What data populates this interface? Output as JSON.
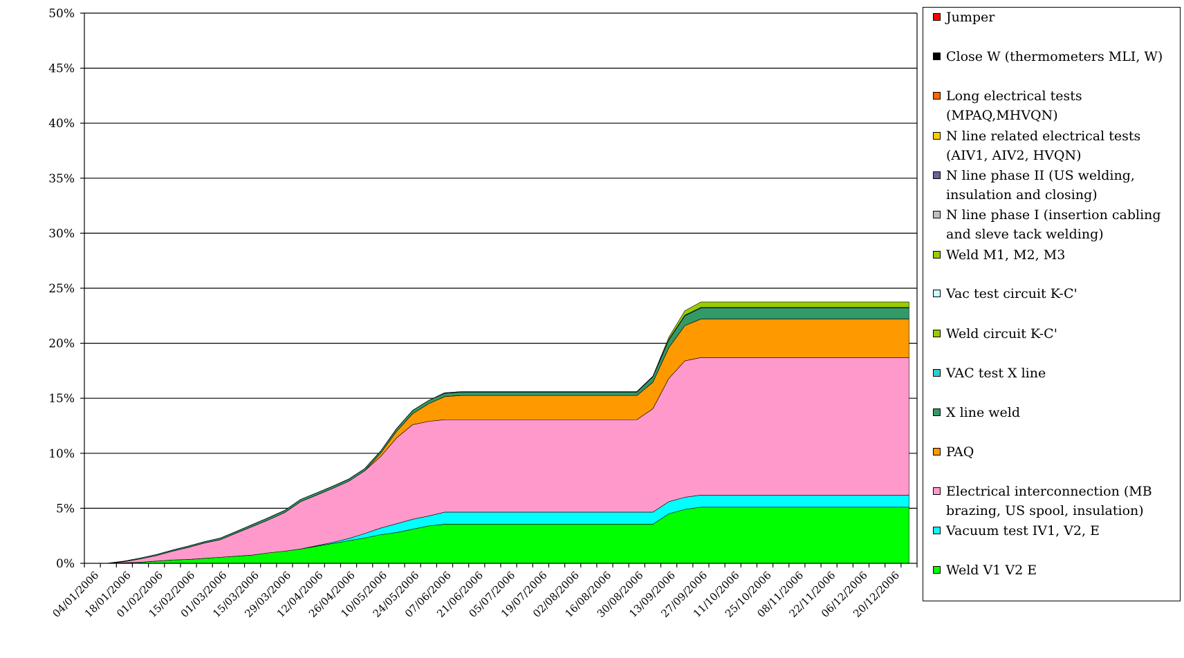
{
  "chart_data": {
    "type": "area",
    "stacked": true,
    "ylim": [
      0,
      50
    ],
    "y_ticks": [
      "0%",
      "5%",
      "10%",
      "15%",
      "20%",
      "25%",
      "30%",
      "35%",
      "40%",
      "45%",
      "50%"
    ],
    "x_tick_labels": [
      "04/01/2006",
      "18/01/2006",
      "01/02/2006",
      "15/02/2006",
      "01/03/2006",
      "15/03/2006",
      "29/03/2006",
      "12/04/2006",
      "26/04/2006",
      "10/05/2006",
      "24/05/2006",
      "07/06/2006",
      "21/06/2006",
      "05/07/2006",
      "19/07/2006",
      "02/08/2006",
      "16/08/2006",
      "30/08/2006",
      "13/09/2006",
      "27/09/2006",
      "11/10/2006",
      "25/10/2006",
      "08/11/2006",
      "22/11/2006",
      "06/12/2006",
      "20/12/2006"
    ],
    "x": [
      "04/01/2006",
      "11/01/2006",
      "18/01/2006",
      "25/01/2006",
      "01/02/2006",
      "08/02/2006",
      "15/02/2006",
      "22/02/2006",
      "01/03/2006",
      "08/03/2006",
      "15/03/2006",
      "22/03/2006",
      "29/03/2006",
      "05/04/2006",
      "12/04/2006",
      "19/04/2006",
      "26/04/2006",
      "03/05/2006",
      "10/05/2006",
      "17/05/2006",
      "24/05/2006",
      "31/05/2006",
      "07/06/2006",
      "14/06/2006",
      "21/06/2006",
      "28/06/2006",
      "05/07/2006",
      "12/07/2006",
      "19/07/2006",
      "26/07/2006",
      "02/08/2006",
      "09/08/2006",
      "16/08/2006",
      "23/08/2006",
      "30/08/2006",
      "06/09/2006",
      "13/09/2006",
      "20/09/2006",
      "27/09/2006",
      "04/10/2006",
      "11/10/2006",
      "18/10/2006",
      "25/10/2006",
      "01/11/2006",
      "08/11/2006",
      "15/11/2006",
      "22/11/2006",
      "29/11/2006",
      "06/12/2006",
      "13/12/2006",
      "20/12/2006",
      "27/12/2006"
    ],
    "grid": true,
    "legend_position": "right",
    "series": [
      {
        "name": "Weld V1 V2 E",
        "color": "#00ff00",
        "values": [
          0,
          0,
          0.05,
          0.1,
          0.2,
          0.3,
          0.35,
          0.45,
          0.55,
          0.65,
          0.75,
          0.95,
          1.1,
          1.3,
          1.55,
          1.8,
          2.05,
          2.3,
          2.6,
          2.8,
          3.1,
          3.4,
          3.55,
          3.55,
          3.55,
          3.55,
          3.55,
          3.55,
          3.55,
          3.55,
          3.55,
          3.55,
          3.55,
          3.55,
          3.55,
          3.55,
          4.5,
          4.9,
          5.1,
          5.1,
          5.1,
          5.1,
          5.1,
          5.1,
          5.1,
          5.1,
          5.1,
          5.1,
          5.1,
          5.1,
          5.1,
          5.1
        ]
      },
      {
        "name": "Vacuum test IV1, V2, E",
        "color": "#00ffff",
        "values": [
          0,
          0,
          0,
          0,
          0,
          0,
          0,
          0,
          0,
          0,
          0,
          0,
          0,
          0,
          0.05,
          0.1,
          0.2,
          0.4,
          0.6,
          0.8,
          0.9,
          0.9,
          1.1,
          1.1,
          1.1,
          1.1,
          1.1,
          1.1,
          1.1,
          1.1,
          1.1,
          1.1,
          1.1,
          1.1,
          1.1,
          1.1,
          1.1,
          1.1,
          1.1,
          1.1,
          1.1,
          1.1,
          1.1,
          1.1,
          1.1,
          1.1,
          1.1,
          1.1,
          1.1,
          1.1,
          1.1,
          1.1
        ]
      },
      {
        "name": "Electrical interconnection (MB brazing, US spool, insulation)",
        "color": "#ff99cc",
        "values": [
          0,
          0,
          0.1,
          0.3,
          0.5,
          0.8,
          1.1,
          1.4,
          1.6,
          2.1,
          2.6,
          3.0,
          3.5,
          4.3,
          4.6,
          4.9,
          5.2,
          5.7,
          6.5,
          7.8,
          8.6,
          8.6,
          8.4,
          8.4,
          8.4,
          8.4,
          8.4,
          8.4,
          8.4,
          8.4,
          8.4,
          8.4,
          8.4,
          8.4,
          8.4,
          9.4,
          11.2,
          12.4,
          12.5,
          12.5,
          12.5,
          12.5,
          12.5,
          12.5,
          12.5,
          12.5,
          12.5,
          12.5,
          12.5,
          12.5,
          12.5,
          12.5
        ]
      },
      {
        "name": "PAQ",
        "color": "#ff9900",
        "values": [
          0,
          0,
          0,
          0,
          0,
          0,
          0,
          0,
          0,
          0,
          0,
          0,
          0,
          0,
          0,
          0,
          0,
          0,
          0.3,
          0.6,
          1.0,
          1.6,
          2.1,
          2.2,
          2.2,
          2.2,
          2.2,
          2.2,
          2.2,
          2.2,
          2.2,
          2.2,
          2.2,
          2.2,
          2.2,
          2.4,
          2.8,
          3.2,
          3.5,
          3.5,
          3.5,
          3.5,
          3.5,
          3.5,
          3.5,
          3.5,
          3.5,
          3.5,
          3.5,
          3.5,
          3.5,
          3.5
        ]
      },
      {
        "name": "X line weld",
        "color": "#339966",
        "values": [
          0,
          0.02,
          0.05,
          0.08,
          0.1,
          0.1,
          0.12,
          0.12,
          0.15,
          0.15,
          0.18,
          0.2,
          0.2,
          0.2,
          0.2,
          0.2,
          0.2,
          0.2,
          0.2,
          0.25,
          0.3,
          0.3,
          0.3,
          0.3,
          0.3,
          0.3,
          0.3,
          0.3,
          0.3,
          0.3,
          0.3,
          0.3,
          0.3,
          0.3,
          0.3,
          0.5,
          0.7,
          0.9,
          1.0,
          1.0,
          1.0,
          1.0,
          1.0,
          1.0,
          1.0,
          1.0,
          1.0,
          1.0,
          1.0,
          1.0,
          1.0,
          1.0
        ]
      },
      {
        "name": "VAC test X line",
        "color": "#33cccc",
        "values": [
          0,
          0,
          0,
          0,
          0,
          0,
          0,
          0,
          0,
          0,
          0,
          0,
          0,
          0,
          0,
          0,
          0,
          0,
          0,
          0,
          0,
          0,
          0.05,
          0.05,
          0.05,
          0.05,
          0.05,
          0.05,
          0.05,
          0.05,
          0.05,
          0.05,
          0.05,
          0.05,
          0.05,
          0.05,
          0.05,
          0.05,
          0.05,
          0.05,
          0.05,
          0.05,
          0.05,
          0.05,
          0.05,
          0.05,
          0.05,
          0.05,
          0.05,
          0.05,
          0.05,
          0.05
        ]
      },
      {
        "name": "Weld circuit K-C'",
        "color": "#99cc00",
        "values": [
          0,
          0,
          0,
          0,
          0,
          0,
          0,
          0,
          0,
          0,
          0,
          0,
          0,
          0,
          0,
          0,
          0,
          0,
          0,
          0,
          0,
          0,
          0,
          0,
          0,
          0,
          0,
          0,
          0,
          0,
          0,
          0,
          0,
          0,
          0,
          0,
          0.2,
          0.4,
          0.5,
          0.5,
          0.5,
          0.5,
          0.5,
          0.5,
          0.5,
          0.5,
          0.5,
          0.5,
          0.5,
          0.5,
          0.5,
          0.5
        ]
      },
      {
        "name": "Vac test circuit K-C'",
        "color": "#ccffff",
        "values": [
          0,
          0,
          0,
          0,
          0,
          0,
          0,
          0,
          0,
          0,
          0,
          0,
          0,
          0,
          0,
          0,
          0,
          0,
          0,
          0,
          0,
          0,
          0,
          0,
          0,
          0,
          0,
          0,
          0,
          0,
          0,
          0,
          0,
          0,
          0,
          0,
          0,
          0,
          0,
          0,
          0,
          0,
          0,
          0,
          0,
          0,
          0,
          0,
          0,
          0,
          0,
          0
        ]
      },
      {
        "name": "Weld M1, M2, M3",
        "color": "#99cc00",
        "values": [
          0,
          0,
          0,
          0,
          0,
          0,
          0,
          0,
          0,
          0,
          0,
          0,
          0,
          0,
          0,
          0,
          0,
          0,
          0,
          0,
          0,
          0,
          0,
          0,
          0,
          0,
          0,
          0,
          0,
          0,
          0,
          0,
          0,
          0,
          0,
          0,
          0,
          0,
          0,
          0,
          0,
          0,
          0,
          0,
          0,
          0,
          0,
          0,
          0,
          0,
          0,
          0
        ]
      },
      {
        "name": "N line phase I (insertion cabling and sleve tack welding)",
        "color": "#c0c0c0",
        "values": [
          0,
          0,
          0,
          0,
          0,
          0,
          0,
          0,
          0,
          0,
          0,
          0,
          0,
          0,
          0,
          0,
          0,
          0,
          0,
          0,
          0,
          0,
          0,
          0,
          0,
          0,
          0,
          0,
          0,
          0,
          0,
          0,
          0,
          0,
          0,
          0,
          0,
          0,
          0,
          0,
          0,
          0,
          0,
          0,
          0,
          0,
          0,
          0,
          0,
          0,
          0,
          0
        ]
      },
      {
        "name": "N line phase II (US welding, insulation and closing)",
        "color": "#666699",
        "values": [
          0,
          0,
          0,
          0,
          0,
          0,
          0,
          0,
          0,
          0,
          0,
          0,
          0,
          0,
          0,
          0,
          0,
          0,
          0,
          0,
          0,
          0,
          0,
          0,
          0,
          0,
          0,
          0,
          0,
          0,
          0,
          0,
          0,
          0,
          0,
          0,
          0,
          0,
          0,
          0,
          0,
          0,
          0,
          0,
          0,
          0,
          0,
          0,
          0,
          0,
          0,
          0
        ]
      },
      {
        "name": "N line related electrical tests (AIV1, AIV2, HVQN)",
        "color": "#ffcc00",
        "values": [
          0,
          0,
          0,
          0,
          0,
          0,
          0,
          0,
          0,
          0,
          0,
          0,
          0,
          0,
          0,
          0,
          0,
          0,
          0,
          0,
          0,
          0,
          0,
          0,
          0,
          0,
          0,
          0,
          0,
          0,
          0,
          0,
          0,
          0,
          0,
          0,
          0,
          0,
          0,
          0,
          0,
          0,
          0,
          0,
          0,
          0,
          0,
          0,
          0,
          0,
          0,
          0
        ]
      },
      {
        "name": "Long electrical tests (MPAQ,MHVQN)",
        "color": "#ff6600",
        "values": [
          0,
          0,
          0,
          0,
          0,
          0,
          0,
          0,
          0,
          0,
          0,
          0,
          0,
          0,
          0,
          0,
          0,
          0,
          0,
          0,
          0,
          0,
          0,
          0,
          0,
          0,
          0,
          0,
          0,
          0,
          0,
          0,
          0,
          0,
          0,
          0,
          0,
          0,
          0,
          0,
          0,
          0,
          0,
          0,
          0,
          0,
          0,
          0,
          0,
          0,
          0,
          0
        ]
      },
      {
        "name": "Close W (thermometers MLI, W)",
        "color": "#000000",
        "values": [
          0,
          0,
          0,
          0,
          0,
          0,
          0,
          0,
          0,
          0,
          0,
          0,
          0,
          0,
          0,
          0,
          0,
          0,
          0,
          0,
          0,
          0,
          0,
          0,
          0,
          0,
          0,
          0,
          0,
          0,
          0,
          0,
          0,
          0,
          0,
          0,
          0,
          0,
          0,
          0,
          0,
          0,
          0,
          0,
          0,
          0,
          0,
          0,
          0,
          0,
          0,
          0
        ]
      },
      {
        "name": "Jumper",
        "color": "#ff0000",
        "values": [
          0,
          0,
          0,
          0,
          0,
          0,
          0,
          0,
          0,
          0,
          0,
          0,
          0,
          0,
          0,
          0,
          0,
          0,
          0,
          0,
          0,
          0,
          0,
          0,
          0,
          0,
          0,
          0,
          0,
          0,
          0,
          0,
          0,
          0,
          0,
          0,
          0,
          0,
          0,
          0,
          0,
          0,
          0,
          0,
          0,
          0,
          0,
          0,
          0,
          0,
          0,
          0
        ]
      }
    ]
  }
}
